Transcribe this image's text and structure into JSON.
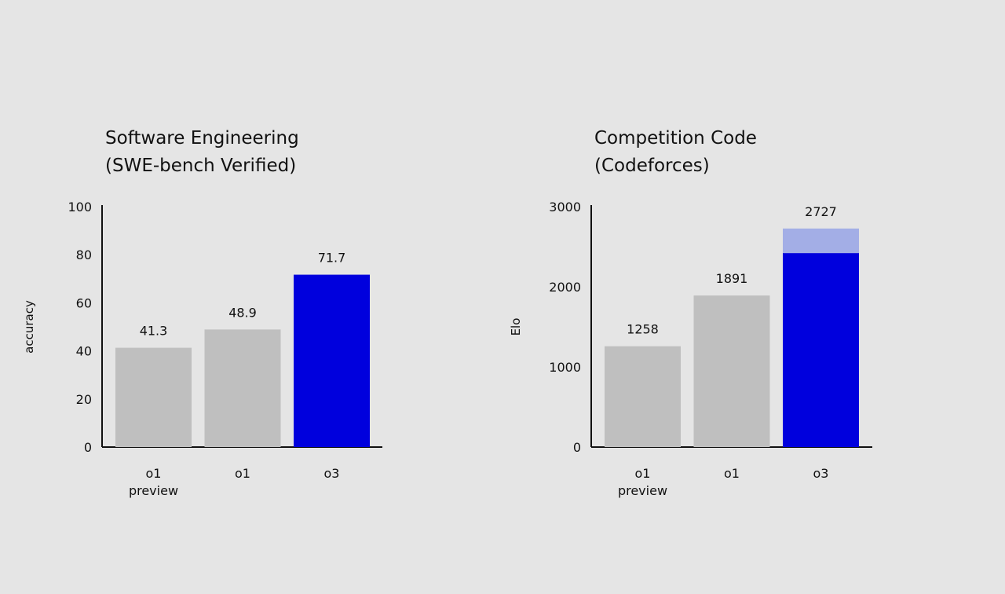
{
  "chart_data": [
    {
      "type": "bar",
      "title": "Software Engineering",
      "subtitle": "(SWE-bench Verified)",
      "xlabel": "",
      "ylabel": "accuracy",
      "ylim": [
        0,
        100
      ],
      "yticks": [
        "0",
        "20",
        "40",
        "60",
        "80",
        "100"
      ],
      "categories": [
        [
          "o1",
          "preview"
        ],
        [
          "o1"
        ],
        [
          "o3"
        ]
      ],
      "values": [
        41.3,
        48.9,
        71.7
      ],
      "labels": [
        "41.3",
        "48.9",
        "71.7"
      ],
      "colors": [
        "#bfbfbf",
        "#bfbfbf",
        "#0000dd"
      ]
    },
    {
      "type": "bar",
      "title": "Competition Code",
      "subtitle": "(Codeforces)",
      "xlabel": "",
      "ylabel": "Elo",
      "ylim": [
        0,
        3000
      ],
      "yticks": [
        "0",
        "1000",
        "2000",
        "3000"
      ],
      "categories": [
        [
          "o1",
          "preview"
        ],
        [
          "o1"
        ],
        [
          "o3"
        ]
      ],
      "values": [
        1258,
        1891,
        2727
      ],
      "labels": [
        "1258",
        "1891",
        "2727"
      ],
      "stacked_base": [
        null,
        null,
        2420
      ],
      "colors": [
        "#bfbfbf",
        "#bfbfbf",
        "#0000dd"
      ],
      "highlight_top_color": "#a3aee6"
    }
  ]
}
